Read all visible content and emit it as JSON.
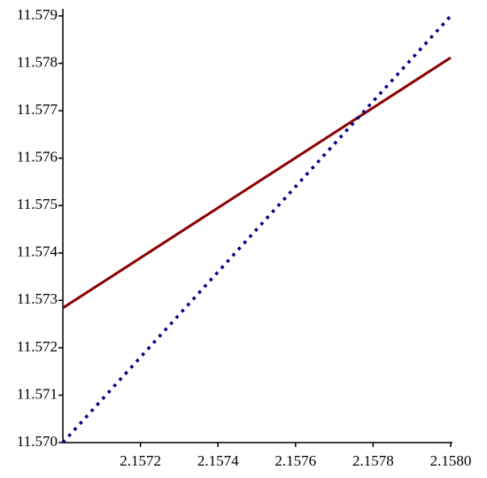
{
  "chart_data": {
    "type": "line",
    "x": [
      2.157,
      2.158
    ],
    "series": [
      {
        "color": "#8b0000",
        "style": "solid",
        "values": [
          11.57284,
          11.57812
        ]
      },
      {
        "color": "#000080",
        "style": "dot",
        "values": [
          11.57,
          11.579
        ]
      }
    ],
    "xlim": [
      2.157,
      2.158
    ],
    "xticks": [
      2.1572,
      2.1574,
      2.1576,
      2.1578,
      {
        "value": 2.158,
        "label": "2.1580"
      }
    ],
    "ylim": [
      11.57,
      11.579
    ],
    "yticks": [
      {
        "value": 11.57,
        "label": "11.570"
      },
      11.571,
      11.572,
      11.573,
      11.574,
      11.575,
      11.576,
      11.577,
      11.578,
      11.579
    ]
  }
}
